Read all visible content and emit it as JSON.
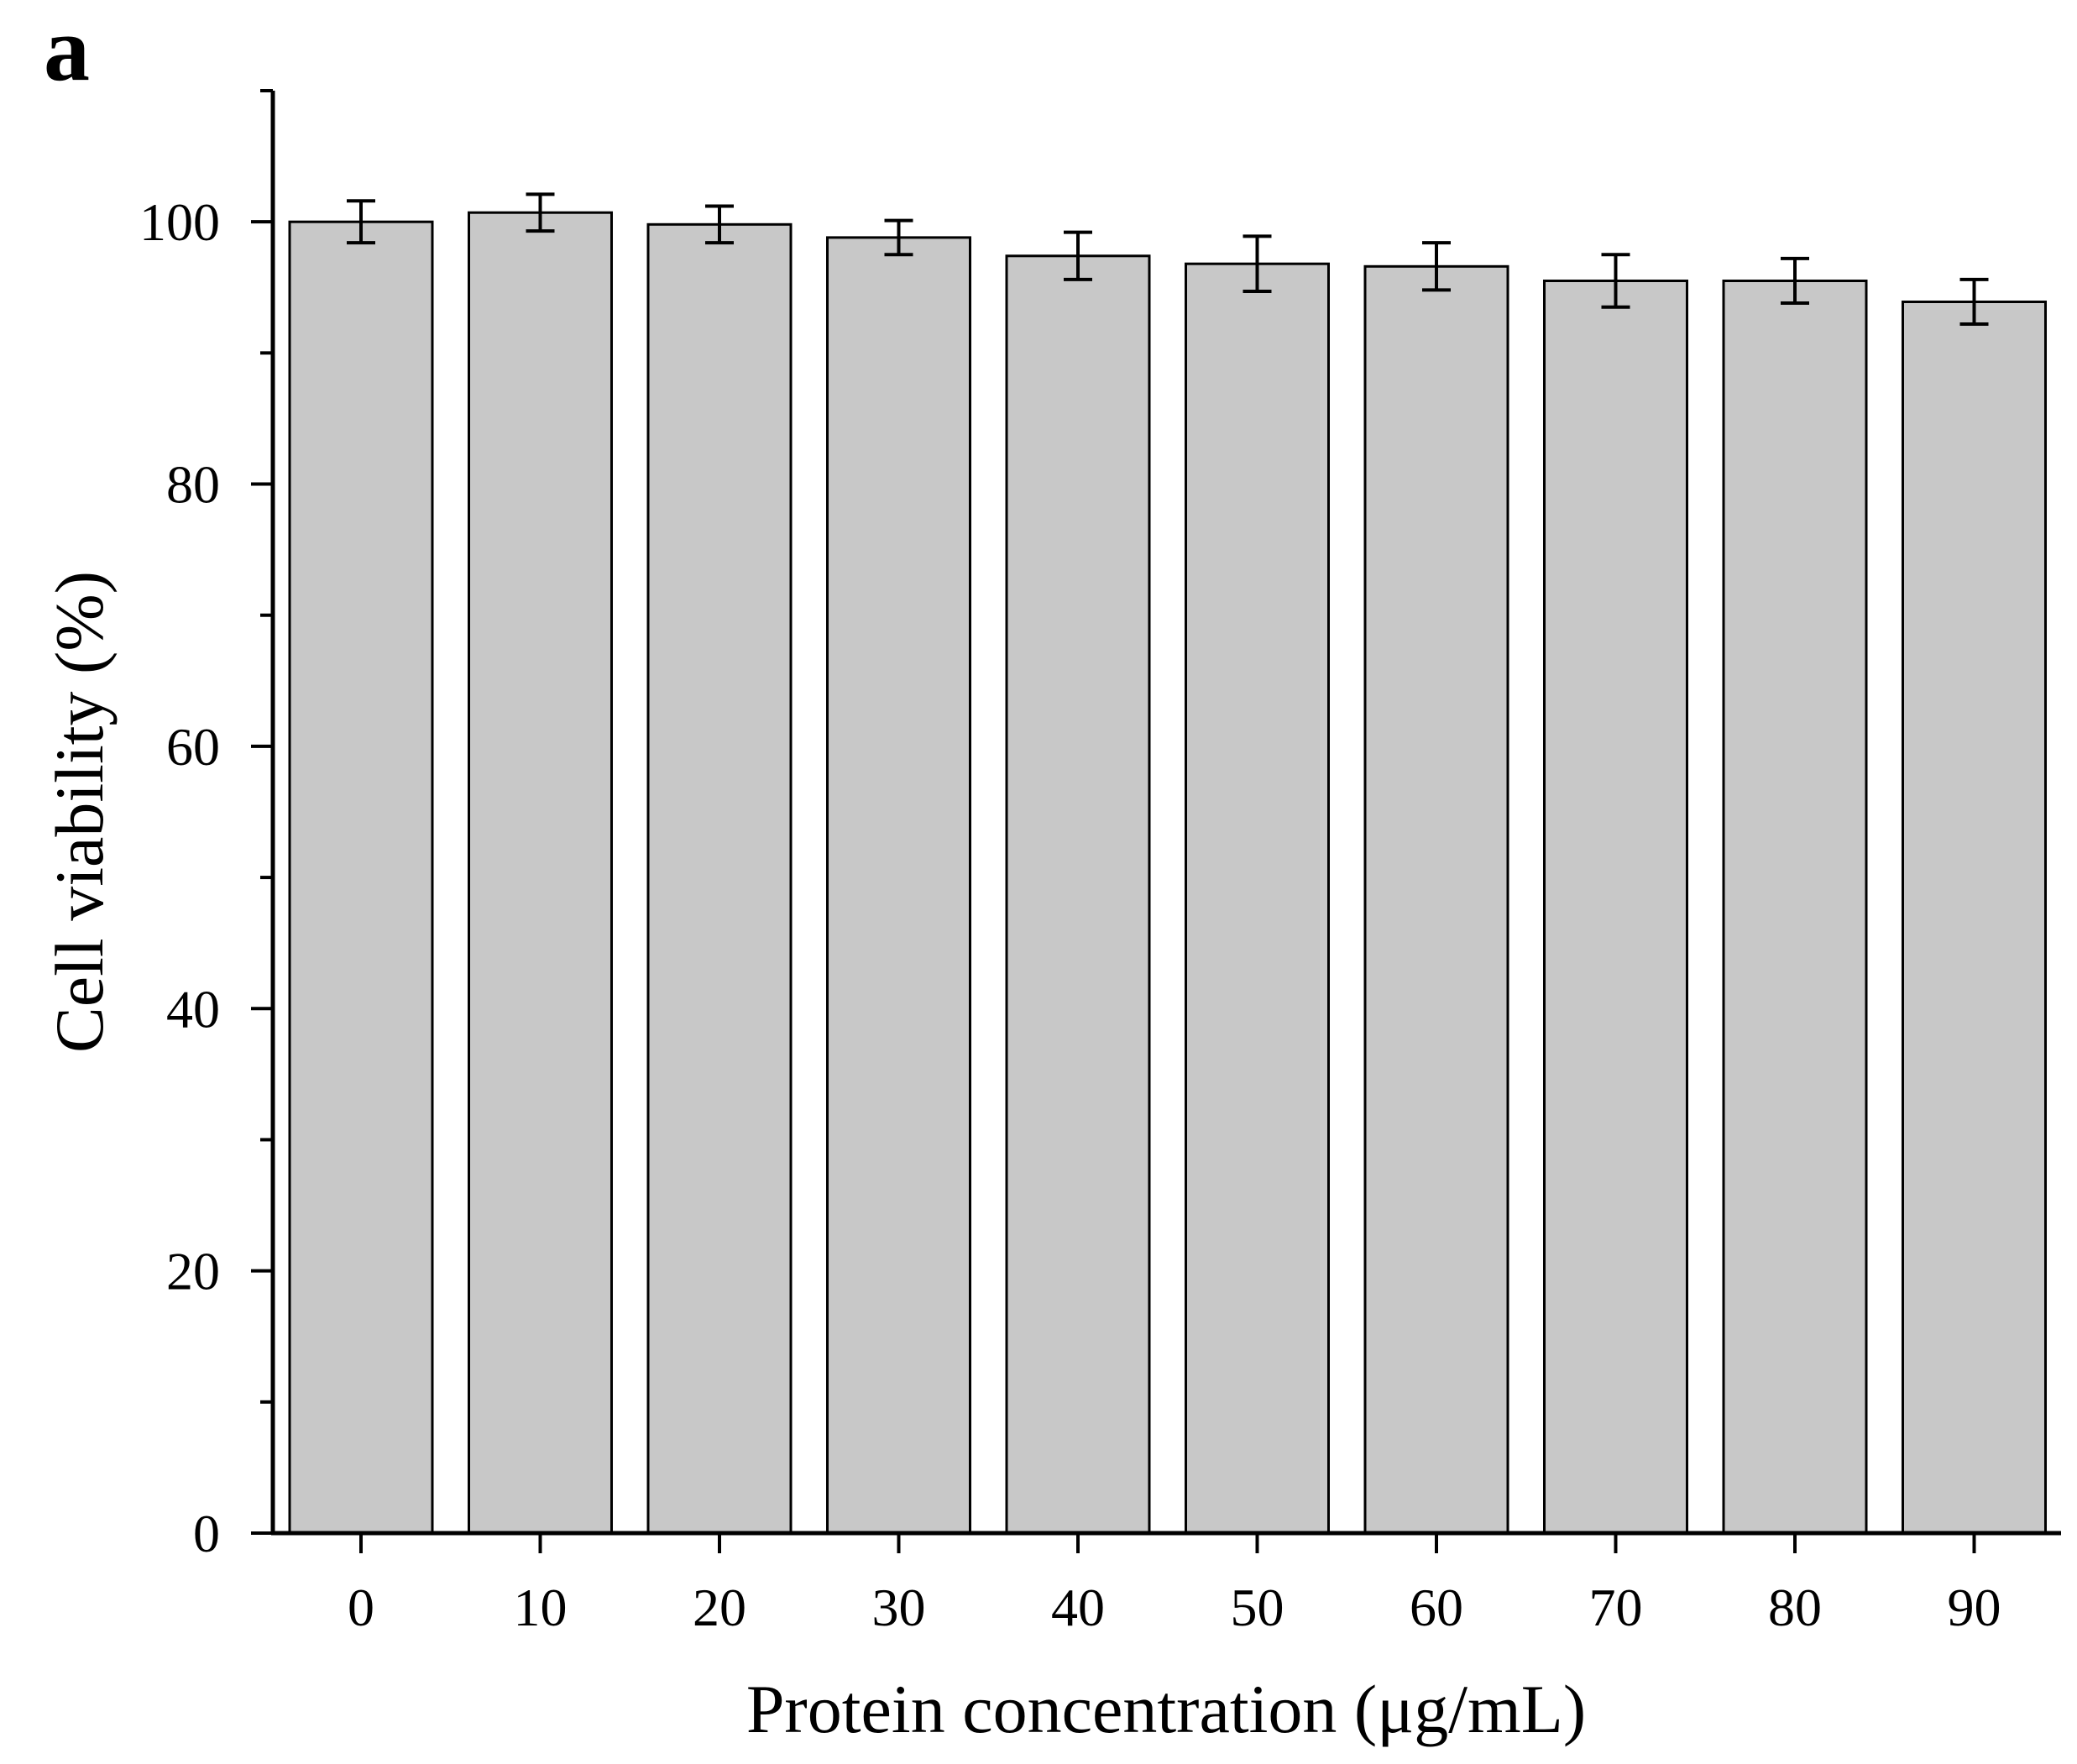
{
  "panel_label": "a",
  "chart_data": {
    "type": "bar",
    "title": "",
    "xlabel": "Protein concentration (μg/mL)",
    "ylabel": "Cell viability (%)",
    "categories": [
      "0",
      "10",
      "20",
      "30",
      "40",
      "50",
      "60",
      "70",
      "80",
      "90"
    ],
    "values": [
      100.0,
      100.7,
      99.8,
      98.8,
      97.4,
      96.8,
      96.6,
      95.5,
      95.5,
      93.9
    ],
    "errors": [
      1.6,
      1.4,
      1.4,
      1.3,
      1.8,
      2.1,
      1.8,
      2.0,
      1.7,
      1.7
    ],
    "ylim": [
      0,
      110
    ],
    "yticks": [
      0,
      20,
      40,
      60,
      80,
      100
    ],
    "y_minor_step": 10,
    "grid": false,
    "legend": "none",
    "colors": {
      "bar_fill": "#c8c8c8",
      "bar_edge": "#000000",
      "axis": "#000000",
      "error_bar": "#000000"
    }
  }
}
